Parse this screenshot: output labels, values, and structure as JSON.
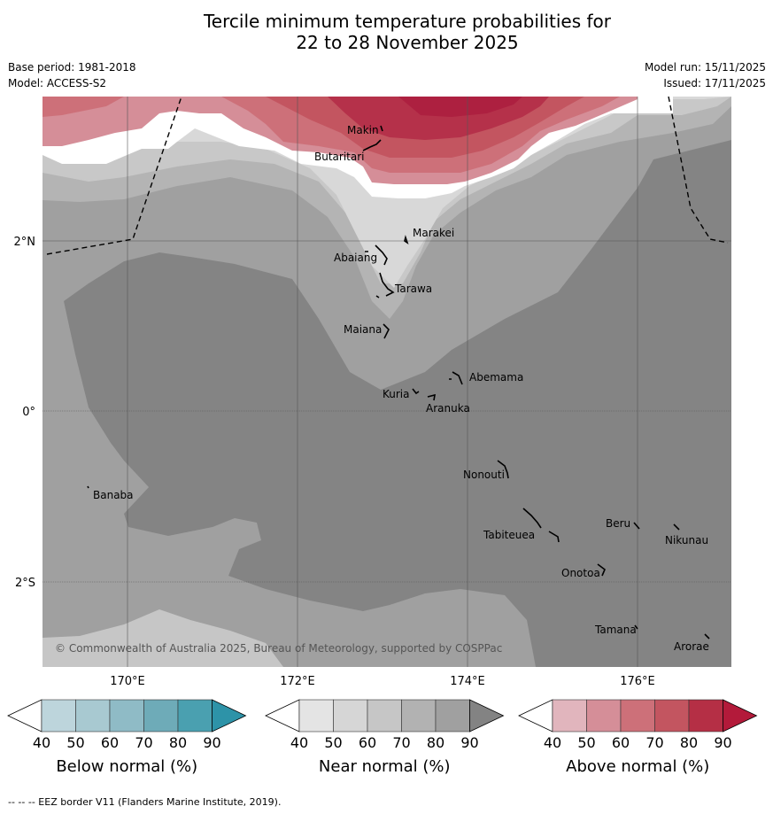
{
  "title_line1": "Tercile minimum temperature probabilities for",
  "title_line2": "22 to 28 November 2025",
  "meta": {
    "base_period": "Base period: 1981-2018",
    "model": "Model: ACCESS-S2",
    "model_run": "Model run: 15/11/2025",
    "issued": "Issued: 17/11/2025"
  },
  "map": {
    "lat_labels": [
      "2°N",
      "0°",
      "2°S"
    ],
    "lon_labels": [
      "170°E",
      "172°E",
      "174°E",
      "176°E"
    ],
    "copyright": "© Commonwealth of Australia 2025, Bureau of Meteorology, supported by COSPPac",
    "places": {
      "makin": "Makin",
      "butaritari": "Butaritari",
      "marakei": "Marakei",
      "abaiang": "Abaiang",
      "tarawa": "Tarawa",
      "maiana": "Maiana",
      "abemama": "Abemama",
      "kuria": "Kuria",
      "aranuka": "Aranuka",
      "nonouti": "Nonouti",
      "banaba": "Banaba",
      "beru": "Beru",
      "tabiteuea": "Tabiteuea",
      "nikunau": "Nikunau",
      "onotoa": "Onotoa",
      "tamana": "Tamana",
      "arorae": "Arorae"
    }
  },
  "colorbars": {
    "ticks": [
      "40",
      "50",
      "60",
      "70",
      "80",
      "90"
    ],
    "below": {
      "title": "Below normal (%)",
      "colors": [
        "#ffffff",
        "#bdd5dc",
        "#a8c9d1",
        "#8fbbc6",
        "#6eabb8",
        "#4aa0b0",
        "#2d93a8"
      ]
    },
    "near": {
      "title": "Near normal (%)",
      "colors": [
        "#ffffff",
        "#e4e4e4",
        "#d6d6d6",
        "#c6c6c6",
        "#b2b2b2",
        "#a0a0a0",
        "#838383"
      ]
    },
    "above": {
      "title": "Above normal (%)",
      "colors": [
        "#ffffff",
        "#e1b5bd",
        "#d58e98",
        "#cd7079",
        "#c35560",
        "#b52f45",
        "#b31a3a"
      ]
    }
  },
  "footer": "--  --  -- EEZ border V11 (Flanders Marine Institute, 2019)."
}
